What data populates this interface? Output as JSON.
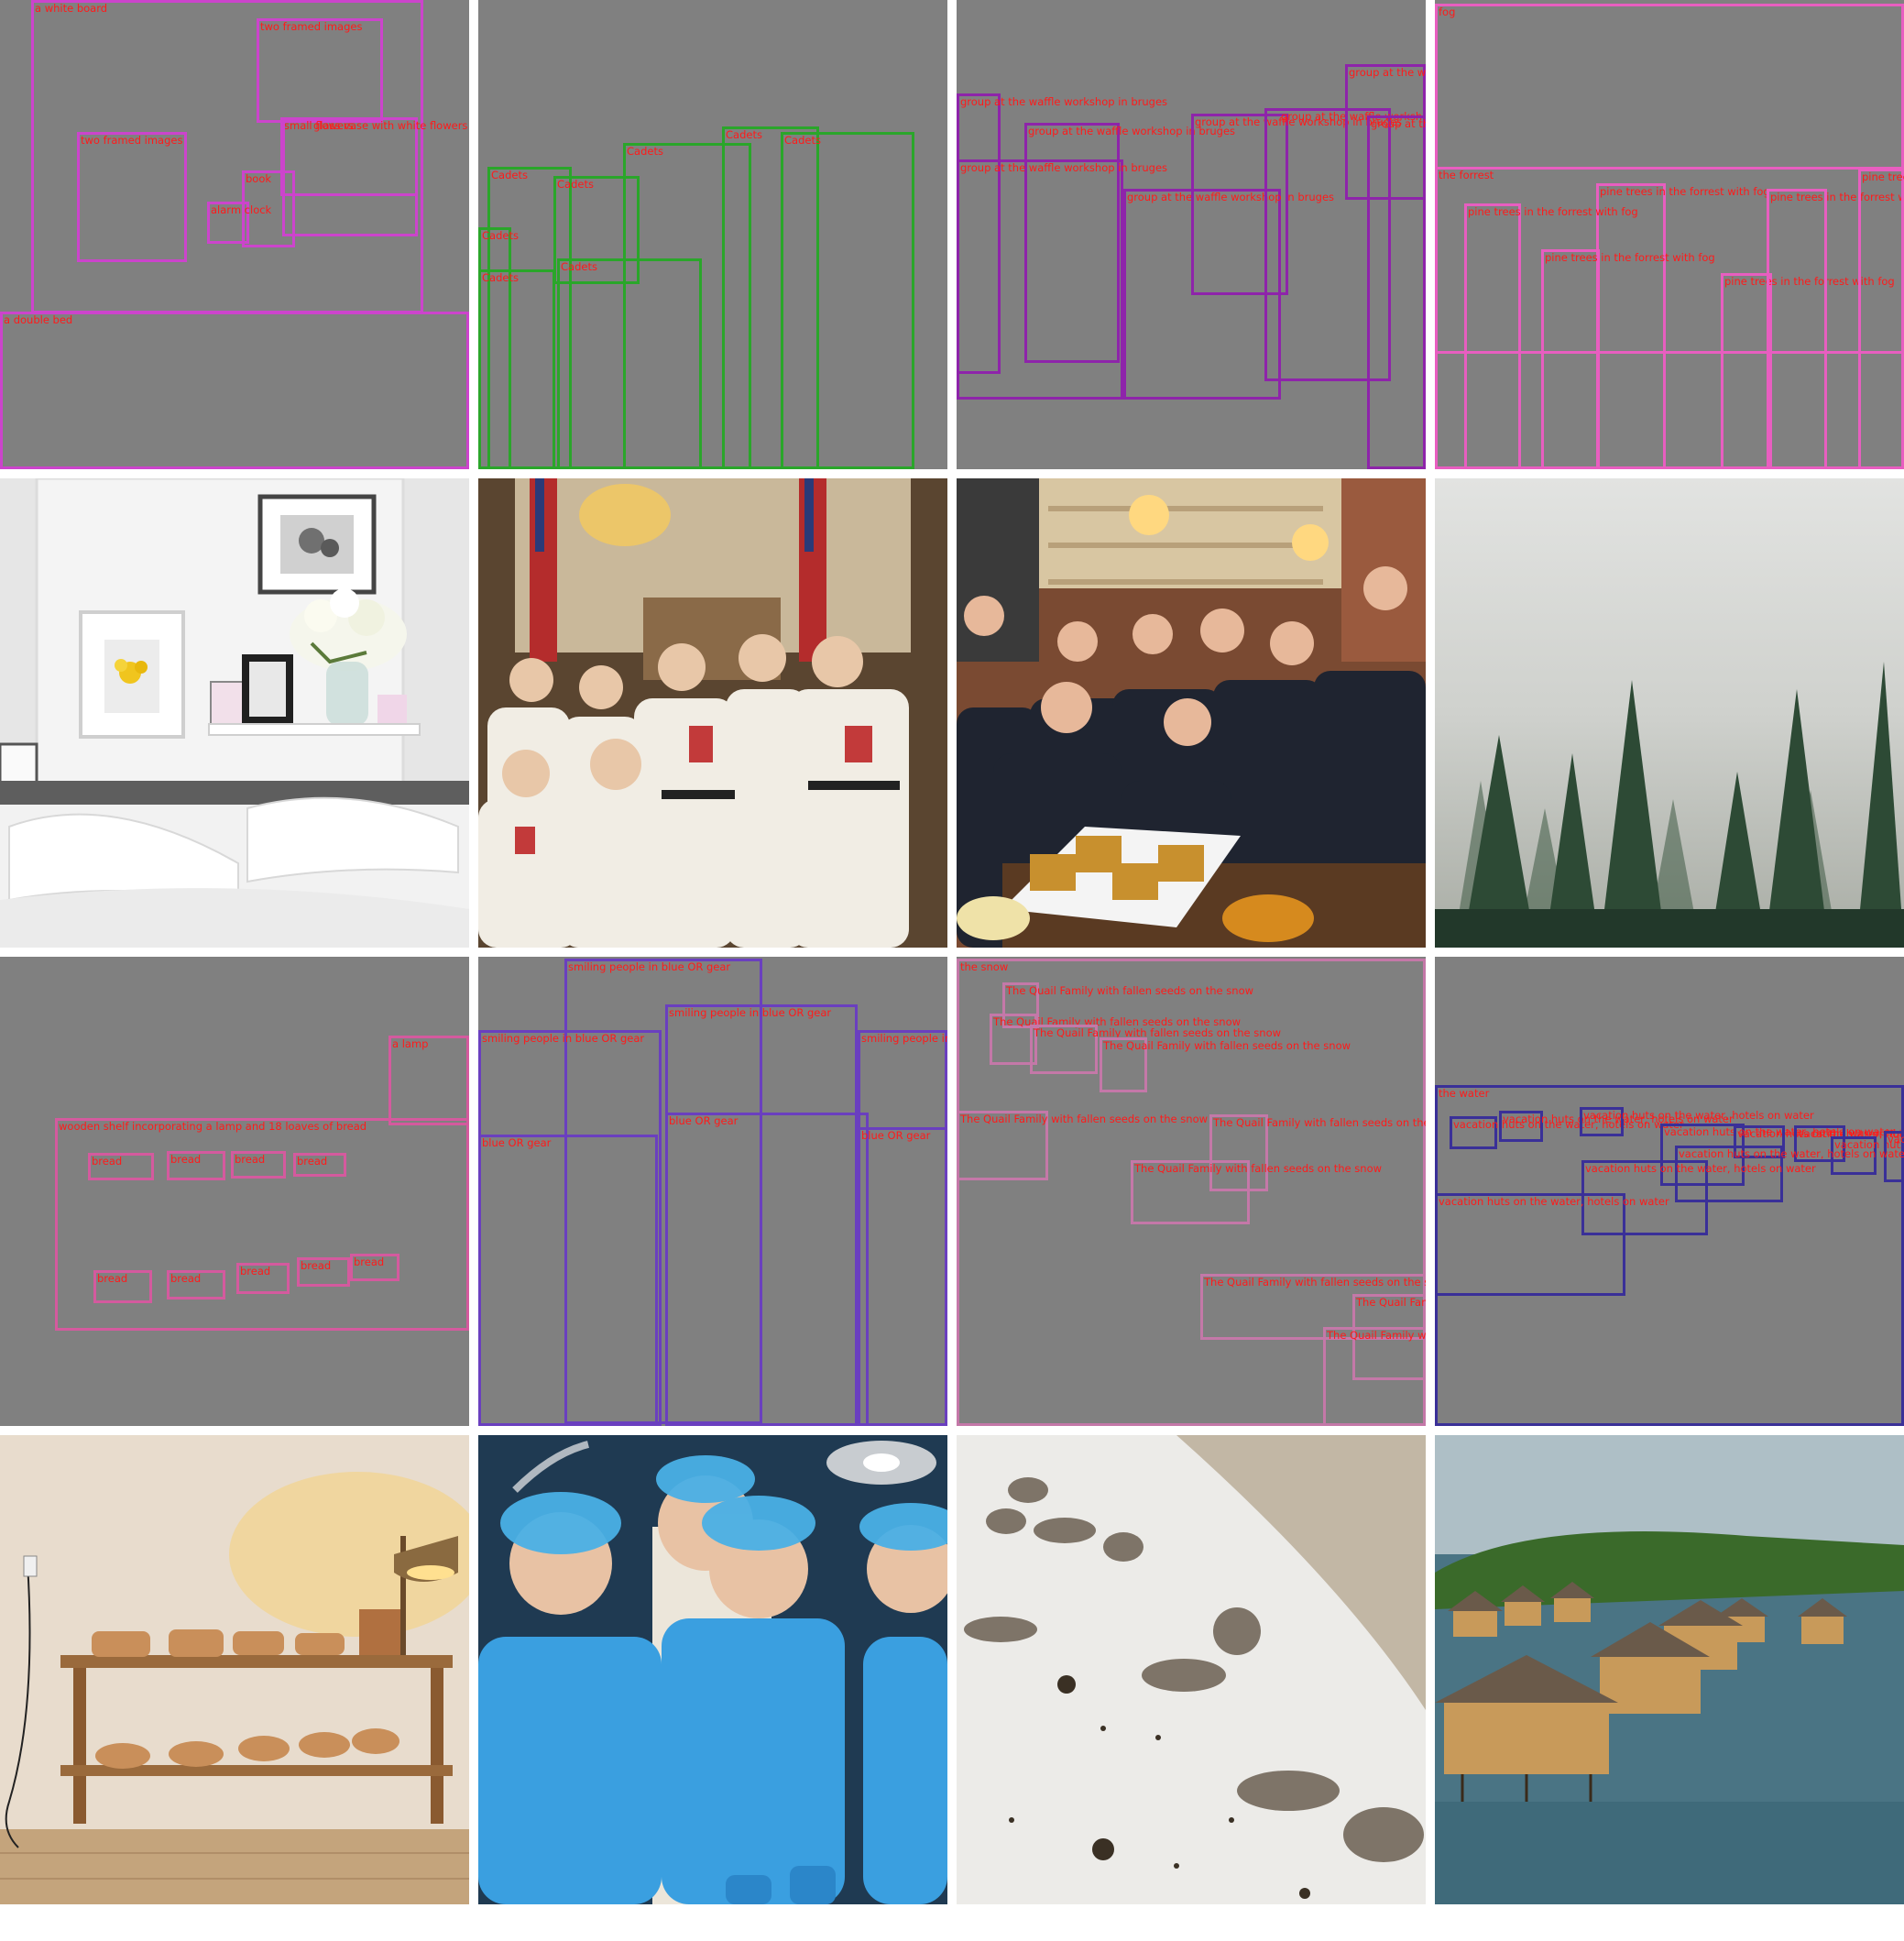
{
  "colors": {
    "layout_background": "#808080",
    "label_text": "#ff1a1a",
    "bedroom": "#cc44cc",
    "cadets": "#2aa62a",
    "waffle": "#8e24aa",
    "forest": "#e85ec0",
    "bread": "#d45a9e",
    "medical": "#6a3fbf",
    "quail": "#c478a8",
    "huts": "#3a3098"
  },
  "layouts": [
    {
      "id": "bedroom",
      "boxes": [
        {
          "label": "a white board"
        },
        {
          "label": "two framed images"
        },
        {
          "label": "two framed images"
        },
        {
          "label": "small flowers"
        },
        {
          "label": "glass vase with white flowers"
        },
        {
          "label": "book"
        },
        {
          "label": "alarm clock"
        },
        {
          "label": "a double bed"
        }
      ]
    },
    {
      "id": "cadets",
      "boxes": [
        {
          "label": "Cadets"
        },
        {
          "label": "Cadets"
        },
        {
          "label": "Cadets"
        },
        {
          "label": "Cadets"
        },
        {
          "label": "Cadets"
        },
        {
          "label": "Cadets"
        },
        {
          "label": "Cadets"
        },
        {
          "label": "Cadets"
        }
      ]
    },
    {
      "id": "waffle",
      "boxes": [
        {
          "label": "group at the waffle workshop in bruges"
        },
        {
          "label": "group at the waffle workshop in bruges"
        },
        {
          "label": "group at the waffle workshop in bruges"
        },
        {
          "label": "group at the waffle workshop in bruges"
        },
        {
          "label": "group at the waffle workshop in bruges"
        },
        {
          "label": "group at the waffle workshop in bruges"
        },
        {
          "label": "group at the waffle workshop in bruges"
        },
        {
          "label": "group at the waffle workshop in bruges"
        }
      ]
    },
    {
      "id": "forest",
      "boxes": [
        {
          "label": "fog"
        },
        {
          "label": "the forrest"
        },
        {
          "label": "pine trees in the forrest with fog"
        },
        {
          "label": "pine trees in the forrest with fog"
        },
        {
          "label": "pine trees in the forrest with fog"
        },
        {
          "label": "pine trees in the forrest with fog"
        },
        {
          "label": "pine trees in the forrest with fog"
        },
        {
          "label": "pine trees in the forrest with fog"
        }
      ]
    },
    {
      "id": "bread",
      "boxes": [
        {
          "label": "a lamp"
        },
        {
          "label": "wooden shelf incorporating a lamp and 18 loaves of bread"
        },
        {
          "label": "bread"
        },
        {
          "label": "bread"
        },
        {
          "label": "bread"
        },
        {
          "label": "bread"
        },
        {
          "label": "bread"
        },
        {
          "label": "bread"
        },
        {
          "label": "bread"
        },
        {
          "label": "bread"
        },
        {
          "label": "bread"
        }
      ]
    },
    {
      "id": "medical",
      "boxes": [
        {
          "label": "smiling people in blue OR gear"
        },
        {
          "label": "smiling people in blue OR gear"
        },
        {
          "label": "smiling people in blue OR gear"
        },
        {
          "label": "smiling people in blue OR gear"
        },
        {
          "label": "blue OR gear"
        },
        {
          "label": "blue OR gear"
        },
        {
          "label": "blue OR gear"
        }
      ]
    },
    {
      "id": "quail",
      "boxes": [
        {
          "label": "the snow"
        },
        {
          "label": "The Quail Family with fallen seeds on the snow"
        },
        {
          "label": "The Quail Family with fallen seeds on the snow"
        },
        {
          "label": "The Quail Family with fallen seeds on the snow"
        },
        {
          "label": "The Quail Family with fallen seeds on the snow"
        },
        {
          "label": "The Quail Family with fallen seeds on the snow"
        },
        {
          "label": "The Quail Family with fallen seeds on the snow"
        },
        {
          "label": "The Quail Family with fallen seeds on the snow"
        },
        {
          "label": "The Quail Family with fallen seeds on the snow"
        },
        {
          "label": "The Quail Family with fallen seeds on the snow"
        },
        {
          "label": "The Quail Family with fallen seeds on the snow"
        }
      ]
    },
    {
      "id": "huts",
      "boxes": [
        {
          "label": "the water"
        },
        {
          "label": "vacation huts on the water, hotels on water"
        },
        {
          "label": "vacation huts on the water, hotels on water"
        },
        {
          "label": "vacation huts on the water, hotels on water"
        },
        {
          "label": "vacation huts on the water, hotels on water"
        },
        {
          "label": "vacation huts on the water, hotels on water"
        },
        {
          "label": "vacation huts on the water, hotels on water"
        },
        {
          "label": "vacation huts on the water, hotels on water"
        },
        {
          "label": "vacation huts on the water, hotels on water"
        },
        {
          "label": "vacation huts on the water, hotels on water"
        },
        {
          "label": "vacation huts on the water, hotels on water"
        },
        {
          "label": "vacation huts on the water, hotels on water"
        }
      ]
    }
  ]
}
